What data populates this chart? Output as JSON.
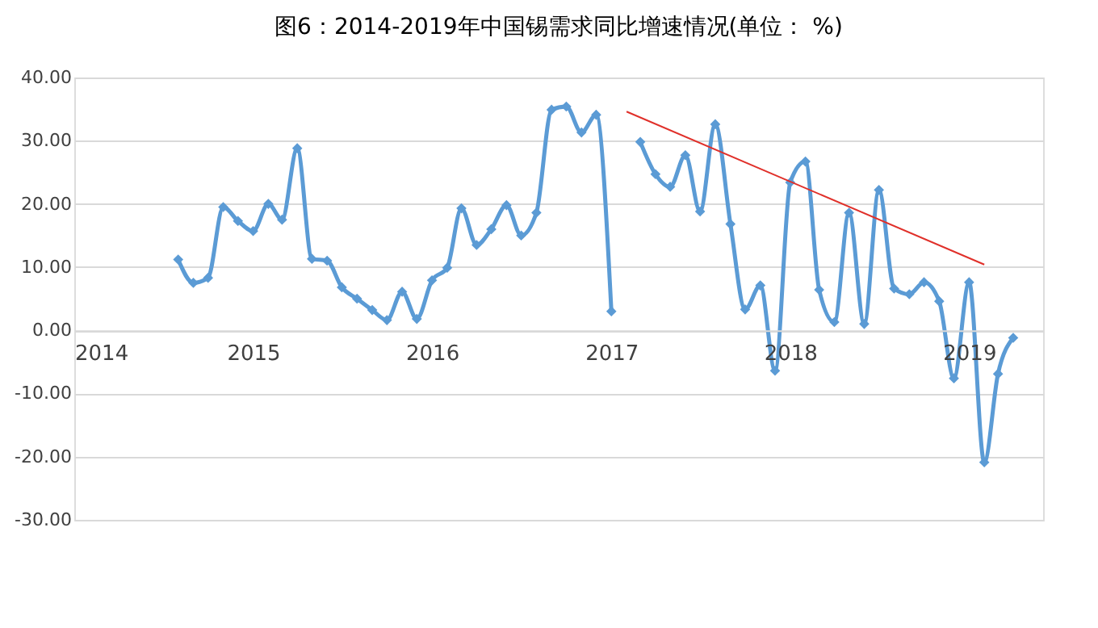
{
  "chart_data": {
    "type": "line",
    "title": "图6：2014-2019年中国锡需求同比增速情况(单位： %)",
    "x": [
      "2014-08",
      "2014-09",
      "2014-10",
      "2014-11",
      "2014-12",
      "2015-01",
      "2015-02",
      "2015-03",
      "2015-04",
      "2015-05",
      "2015-06",
      "2015-07",
      "2015-08",
      "2015-09",
      "2015-10",
      "2015-11",
      "2015-12",
      "2016-01",
      "2016-02",
      "2016-03",
      "2016-04",
      "2016-05",
      "2016-06",
      "2016-07",
      "2016-08",
      "2016-09",
      "2016-10",
      "2016-11",
      "2016-12",
      "2017-01",
      "2017-02",
      "2017-03",
      "2017-04",
      "2017-05",
      "2017-06",
      "2017-07",
      "2017-08",
      "2017-09",
      "2017-10",
      "2017-11",
      "2017-12",
      "2018-01",
      "2018-02",
      "2018-03",
      "2018-04",
      "2018-05",
      "2018-06",
      "2018-07",
      "2018-08",
      "2018-09",
      "2018-10",
      "2018-11",
      "2018-12",
      "2019-01",
      "2019-02",
      "2019-03",
      "2019-04"
    ],
    "series": [
      {
        "color": "#5b9bd5",
        "values": [
          11.2,
          7.5,
          8.3,
          19.5,
          17.3,
          15.7,
          20,
          17.5,
          28.8,
          11.3,
          11,
          6.8,
          5,
          3.2,
          1.6,
          6.1,
          1.8,
          7.9,
          9.9,
          19.3,
          13.5,
          16,
          19.8,
          15,
          18.6,
          34.9,
          35.4,
          31.3,
          34.1,
          3,
          null,
          29.8,
          24.7,
          22.7,
          27.7,
          18.8,
          32.6,
          16.8,
          3.3,
          7.1,
          -6.4,
          23.4,
          26.7,
          6.4,
          1.3,
          18.6,
          1,
          22.2,
          6.6,
          5.7,
          7.6,
          4.6,
          -7.6,
          7.6,
          -20.9,
          -6.9,
          -1.2
        ],
        "marker": "diamond"
      },
      {
        "type": "line",
        "color": "#e0302a",
        "x": [
          "2017-02",
          "2019-02"
        ],
        "values": [
          34.6,
          10.4
        ],
        "marker": "none"
      }
    ],
    "xlim": [
      "2014-01",
      "2019-06"
    ],
    "xticks": [
      "2014",
      "2015",
      "2016",
      "2017",
      "2018",
      "2019"
    ],
    "ylim": [
      -30,
      40
    ],
    "yticks": [
      {
        "value": -30,
        "label": "-30.00"
      },
      {
        "value": -20,
        "label": "-20.00"
      },
      {
        "value": -10,
        "label": "-10.00"
      },
      {
        "value": 0,
        "label": "0.00"
      },
      {
        "value": 10,
        "label": "10.00"
      },
      {
        "value": 20,
        "label": "20.00"
      },
      {
        "value": 30,
        "label": "30.00"
      },
      {
        "value": 40,
        "label": "40.00"
      }
    ],
    "grid": "y",
    "line_style": "solid"
  }
}
